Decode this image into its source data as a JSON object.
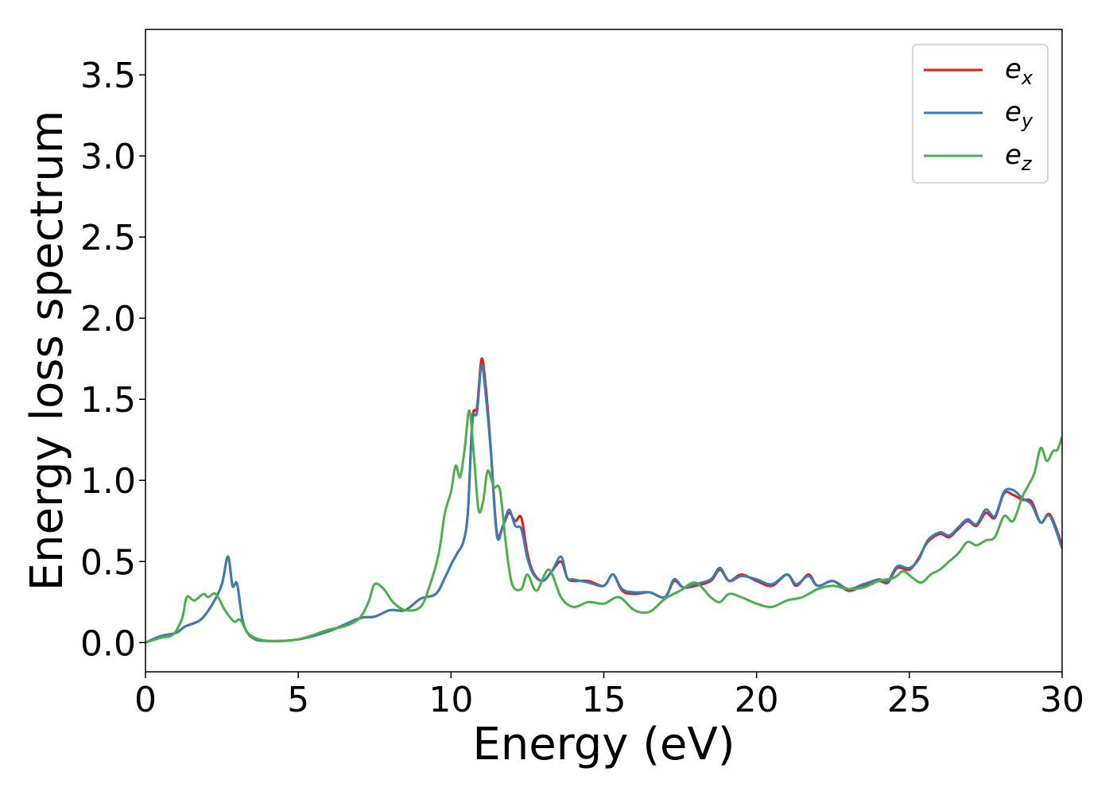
{
  "chart_data": {
    "type": "line",
    "xlabel": "Energy (eV)",
    "ylabel": "Energy loss spectrum",
    "xlim": [
      0,
      30
    ],
    "ylim": [
      -0.18,
      3.78
    ],
    "xticks": [
      0,
      5,
      10,
      15,
      20,
      25,
      30
    ],
    "xtick_labels": [
      "0",
      "5",
      "10",
      "15",
      "20",
      "25",
      "30"
    ],
    "yticks": [
      0.0,
      0.5,
      1.0,
      1.5,
      2.0,
      2.5,
      3.0,
      3.5
    ],
    "ytick_labels": [
      "0.0",
      "0.5",
      "1.0",
      "1.5",
      "2.0",
      "2.5",
      "3.0",
      "3.5"
    ],
    "grid": false,
    "legend_position": "top-right",
    "series": [
      {
        "name": "e_x",
        "legend_base": "e",
        "legend_sub": "x",
        "color": "#e41a1c",
        "x": [
          0,
          0.5,
          1.0,
          1.3,
          1.8,
          2.2,
          2.5,
          2.7,
          2.85,
          3.0,
          3.2,
          3.5,
          4,
          5,
          6,
          7,
          7.5,
          8,
          8.5,
          9,
          9.5,
          9.8,
          10.0,
          10.2,
          10.4,
          10.55,
          10.7,
          10.85,
          11.0,
          11.15,
          11.3,
          11.5,
          11.7,
          11.9,
          12.1,
          12.3,
          12.5,
          12.7,
          13.0,
          13.3,
          13.6,
          13.8,
          14.0,
          14.5,
          15.0,
          15.3,
          15.6,
          16.0,
          16.5,
          17.0,
          17.3,
          17.6,
          18.0,
          18.5,
          18.8,
          19.1,
          19.5,
          20.0,
          20.5,
          21.0,
          21.3,
          21.7,
          22.0,
          22.5,
          23.0,
          23.5,
          24.0,
          24.3,
          24.6,
          25.0,
          25.3,
          25.6,
          26.0,
          26.3,
          26.6,
          26.9,
          27.2,
          27.5,
          27.8,
          28.1,
          28.4,
          28.7,
          29.0,
          29.3,
          29.6,
          30.0
        ],
        "y": [
          0.0,
          0.04,
          0.06,
          0.1,
          0.14,
          0.24,
          0.36,
          0.53,
          0.35,
          0.36,
          0.12,
          0.03,
          0.01,
          0.02,
          0.07,
          0.15,
          0.16,
          0.2,
          0.2,
          0.27,
          0.3,
          0.4,
          0.48,
          0.55,
          0.62,
          0.8,
          1.38,
          1.45,
          1.75,
          1.55,
          1.2,
          0.68,
          0.72,
          0.8,
          0.75,
          0.77,
          0.55,
          0.43,
          0.38,
          0.44,
          0.5,
          0.4,
          0.38,
          0.38,
          0.35,
          0.42,
          0.32,
          0.3,
          0.31,
          0.28,
          0.38,
          0.34,
          0.35,
          0.38,
          0.45,
          0.38,
          0.42,
          0.38,
          0.35,
          0.42,
          0.35,
          0.42,
          0.35,
          0.38,
          0.32,
          0.35,
          0.38,
          0.37,
          0.46,
          0.45,
          0.52,
          0.62,
          0.67,
          0.65,
          0.7,
          0.75,
          0.72,
          0.8,
          0.77,
          0.92,
          0.91,
          0.88,
          0.87,
          0.74,
          0.79,
          0.6
        ],
        "x_label_positions": "dense"
      },
      {
        "name": "e_y",
        "legend_base": "e",
        "legend_sub": "y",
        "color": "#377eb8",
        "x": [
          0,
          0.5,
          1.0,
          1.3,
          1.8,
          2.2,
          2.5,
          2.7,
          2.85,
          3.0,
          3.2,
          3.5,
          4,
          5,
          6,
          7,
          7.5,
          8,
          8.5,
          9,
          9.5,
          9.8,
          10.0,
          10.2,
          10.4,
          10.55,
          10.7,
          10.85,
          11.0,
          11.15,
          11.3,
          11.5,
          11.7,
          11.9,
          12.1,
          12.3,
          12.5,
          12.7,
          13.0,
          13.3,
          13.6,
          13.8,
          14.0,
          14.5,
          15.0,
          15.3,
          15.6,
          16.0,
          16.5,
          17.0,
          17.3,
          17.6,
          18.0,
          18.5,
          18.8,
          19.1,
          19.5,
          20.0,
          20.5,
          21.0,
          21.3,
          21.7,
          22.0,
          22.5,
          23.0,
          23.5,
          24.0,
          24.3,
          24.6,
          25.0,
          25.3,
          25.6,
          26.0,
          26.3,
          26.6,
          26.9,
          27.2,
          27.5,
          27.8,
          28.1,
          28.4,
          28.7,
          29.0,
          29.3,
          29.6,
          30.0
        ],
        "y": [
          0.0,
          0.04,
          0.06,
          0.1,
          0.14,
          0.24,
          0.36,
          0.53,
          0.35,
          0.36,
          0.12,
          0.03,
          0.01,
          0.02,
          0.07,
          0.15,
          0.16,
          0.2,
          0.2,
          0.27,
          0.3,
          0.4,
          0.48,
          0.55,
          0.62,
          0.8,
          1.36,
          1.42,
          1.71,
          1.5,
          1.18,
          0.66,
          0.72,
          0.82,
          0.72,
          0.7,
          0.52,
          0.42,
          0.38,
          0.44,
          0.53,
          0.4,
          0.39,
          0.37,
          0.35,
          0.42,
          0.33,
          0.31,
          0.31,
          0.28,
          0.39,
          0.34,
          0.36,
          0.39,
          0.46,
          0.38,
          0.41,
          0.39,
          0.36,
          0.42,
          0.36,
          0.41,
          0.35,
          0.38,
          0.33,
          0.36,
          0.39,
          0.38,
          0.47,
          0.46,
          0.51,
          0.63,
          0.68,
          0.66,
          0.71,
          0.76,
          0.73,
          0.82,
          0.78,
          0.93,
          0.94,
          0.89,
          0.85,
          0.74,
          0.78,
          0.58
        ]
      },
      {
        "name": "e_z",
        "legend_base": "e",
        "legend_sub": "z",
        "color": "#4daf4a",
        "x": [
          0,
          0.5,
          0.9,
          1.2,
          1.35,
          1.6,
          1.9,
          2.05,
          2.3,
          2.6,
          2.9,
          3.1,
          3.4,
          4,
          5,
          6,
          6.5,
          7.0,
          7.3,
          7.5,
          7.8,
          8.1,
          8.5,
          9.0,
          9.3,
          9.6,
          9.8,
          10.0,
          10.15,
          10.3,
          10.45,
          10.6,
          10.75,
          10.9,
          11.05,
          11.2,
          11.4,
          11.6,
          11.8,
          12.0,
          12.3,
          12.5,
          12.8,
          13.2,
          13.6,
          14.0,
          14.5,
          15.0,
          15.5,
          16.0,
          16.5,
          17.0,
          17.5,
          18.0,
          18.5,
          18.8,
          19.1,
          19.5,
          20.0,
          20.5,
          21.0,
          21.5,
          22.0,
          22.5,
          23.0,
          23.5,
          24.0,
          24.5,
          24.8,
          25.1,
          25.4,
          25.7,
          26.0,
          26.3,
          26.6,
          26.9,
          27.2,
          27.5,
          27.8,
          28.1,
          28.4,
          28.7,
          28.9,
          29.1,
          29.3,
          29.5,
          29.7,
          29.85,
          30.0
        ],
        "y": [
          0.0,
          0.03,
          0.05,
          0.15,
          0.28,
          0.26,
          0.3,
          0.28,
          0.3,
          0.2,
          0.13,
          0.14,
          0.05,
          0.01,
          0.02,
          0.08,
          0.1,
          0.15,
          0.25,
          0.36,
          0.33,
          0.25,
          0.2,
          0.22,
          0.35,
          0.55,
          0.8,
          0.93,
          1.09,
          1.02,
          1.2,
          1.43,
          1.15,
          0.82,
          0.87,
          1.06,
          0.96,
          0.94,
          0.6,
          0.36,
          0.33,
          0.42,
          0.32,
          0.45,
          0.28,
          0.22,
          0.25,
          0.24,
          0.28,
          0.2,
          0.19,
          0.27,
          0.32,
          0.37,
          0.28,
          0.25,
          0.3,
          0.28,
          0.24,
          0.22,
          0.26,
          0.28,
          0.33,
          0.35,
          0.33,
          0.34,
          0.38,
          0.4,
          0.44,
          0.4,
          0.37,
          0.42,
          0.45,
          0.5,
          0.55,
          0.62,
          0.6,
          0.63,
          0.65,
          0.78,
          0.75,
          0.9,
          0.97,
          1.05,
          1.2,
          1.12,
          1.18,
          1.19,
          1.27
        ]
      }
    ]
  }
}
